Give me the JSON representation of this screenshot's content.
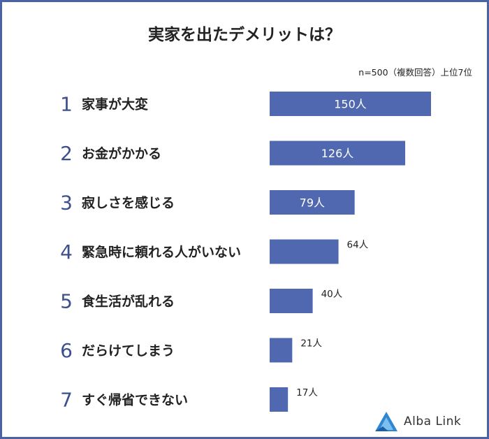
{
  "title": "実家を出たデメリットは？",
  "note": "n=500（複数回答）上位7位",
  "brand": {
    "name": "Alba Link",
    "color": "#3a8fd6"
  },
  "colors": {
    "bar": "#5068b0",
    "border": "#4a62a8",
    "rank": "#3d4f8f"
  },
  "chart_data": {
    "type": "bar",
    "orientation": "horizontal",
    "categories": [
      "家事が大変",
      "お金がかかる",
      "寂しさを感じる",
      "緊急時に頼れる人がいない",
      "食生活が乱れる",
      "だらけてしまう",
      "すぐ帰省できない"
    ],
    "ranks": [
      "1",
      "2",
      "3",
      "4",
      "5",
      "6",
      "7"
    ],
    "values": [
      150,
      126,
      79,
      64,
      40,
      21,
      17
    ],
    "labels": [
      "150人",
      "126人",
      "79人",
      "64人",
      "40人",
      "21人",
      "17人"
    ],
    "xlim": [
      0,
      150
    ]
  }
}
